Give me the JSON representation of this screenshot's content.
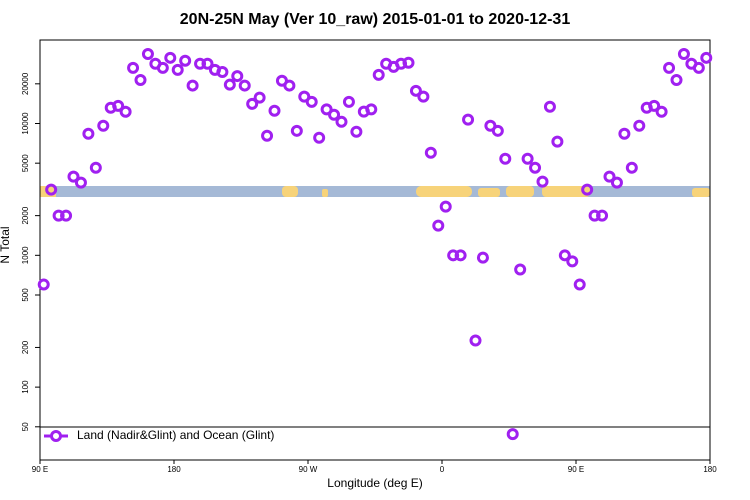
{
  "chart_data": {
    "type": "scatter",
    "title": "20N-25N May (Ver 10_raw)   2015-01-01 to 2020-12-31",
    "x_label": "Longitude (deg E)",
    "y_label": "N Total",
    "xlim": [
      90,
      540
    ],
    "xticks": [
      {
        "value": 90,
        "label": "90 E"
      },
      180,
      {
        "value": 270,
        "label": "90 W"
      },
      {
        "value": 360,
        "label": "0"
      },
      {
        "value": 450,
        "label": "90 E"
      },
      {
        "value": 540,
        "label": "180"
      }
    ],
    "ylim": [
      28,
      43000
    ],
    "log_y": true,
    "yticks": [
      50,
      100,
      200,
      500,
      1000,
      2000,
      5000,
      10000,
      20000
    ],
    "legend": "bottom-left",
    "series": [
      {
        "name": "Land (Nadir&Glint) and Ocean (Glint)",
        "color": "#a020f0",
        "x": [
          92.5,
          97.5,
          102.5,
          107.5,
          112.5,
          117.5,
          122.5,
          127.5,
          132.5,
          137.5,
          142.5,
          147.5,
          152.5,
          157.5,
          162.5,
          167.5,
          172.5,
          177.5,
          182.5,
          187.5,
          192.5,
          197.5,
          202.5,
          207.5,
          212.5,
          217.5,
          222.5,
          227.5,
          232.5,
          237.5,
          242.5,
          247.5,
          252.5,
          257.5,
          262.5,
          267.5,
          272.5,
          277.5,
          282.5,
          287.5,
          292.5,
          297.5,
          302.5,
          307.5,
          312.5,
          317.5,
          322.5,
          327.5,
          332.5,
          337.5,
          342.5,
          347.5,
          352.5,
          357.5,
          362.5,
          367.5,
          372.5,
          377.5,
          382.5,
          387.5,
          392.5,
          397.5,
          402.5,
          407.5,
          412.5,
          417.5,
          422.5,
          427.5,
          432.5,
          437.5,
          442.5,
          447.5,
          452.5,
          457.5,
          462.5,
          467.5,
          472.5,
          477.5,
          482.5,
          487.5,
          492.5,
          497.5,
          502.5,
          507.5,
          512.5,
          517.5,
          522.5,
          527.5,
          532.5,
          537.5
        ],
        "values": [
          600,
          3150,
          2000,
          2000,
          3950,
          3560,
          8360,
          4620,
          9620,
          13160,
          13600,
          12270,
          26400,
          21400,
          33700,
          28400,
          26400,
          31500,
          25500,
          29900,
          19400,
          28400,
          28400,
          25500,
          24600,
          19700,
          22900,
          19400,
          14100,
          15700,
          8070,
          12500,
          21100,
          19400,
          8800,
          16000,
          14600,
          7800,
          12800,
          11650,
          10300,
          14600,
          8660,
          12300,
          12800,
          23400,
          28400,
          26900,
          28400,
          28900,
          17700,
          16000,
          6000,
          1680,
          2340,
          1000,
          1000,
          10700,
          226,
          960,
          9620,
          8800,
          5400,
          44,
          780,
          5400,
          4620,
          3620,
          13400,
          7280,
          1000,
          900,
          600,
          3150,
          2000,
          2000,
          3950,
          3560,
          8360,
          4620,
          9620,
          13160,
          13600,
          12270,
          26400,
          21400,
          33700,
          28400,
          26400,
          31500
        ]
      }
    ]
  }
}
